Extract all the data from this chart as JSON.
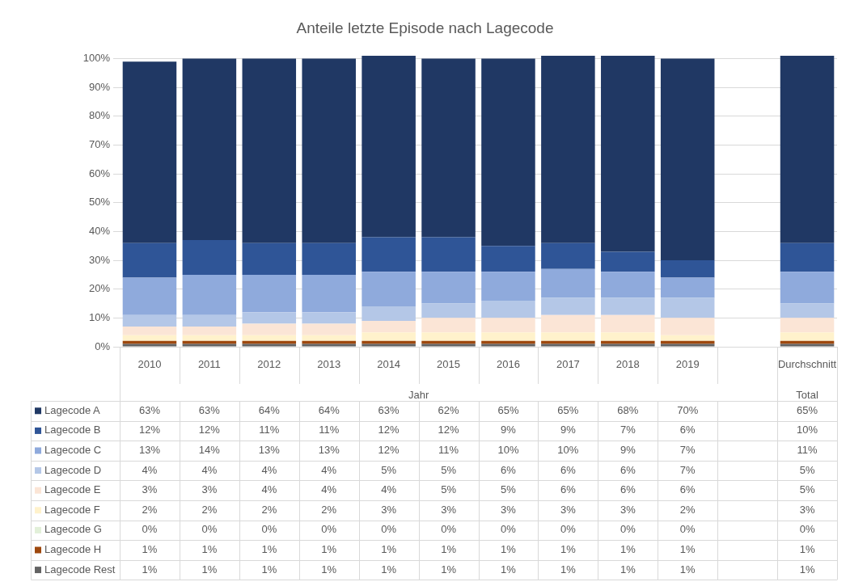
{
  "chart_data": {
    "type": "bar",
    "stacked": true,
    "title": "Anteile letzte Episode nach Lagecode",
    "categories": [
      "2010",
      "2011",
      "2012",
      "2013",
      "2014",
      "2015",
      "2016",
      "2017",
      "2018",
      "2019",
      null,
      "Durchschnitt"
    ],
    "ylim": [
      0,
      101
    ],
    "yticks": [
      {
        "value": 0,
        "label": "0%"
      },
      {
        "value": 10,
        "label": "10%"
      },
      {
        "value": 20,
        "label": "20%"
      },
      {
        "value": 30,
        "label": "30%"
      },
      {
        "value": 40,
        "label": "40%"
      },
      {
        "value": 50,
        "label": "50%"
      },
      {
        "value": 60,
        "label": "60%"
      },
      {
        "value": 70,
        "label": "70%"
      },
      {
        "value": 80,
        "label": "80%"
      },
      {
        "value": 90,
        "label": "90%"
      },
      {
        "value": 100,
        "label": "100%"
      }
    ],
    "grid": "y",
    "legend": "bottom",
    "annotations": [
      "Jahr",
      "Total"
    ],
    "series": [
      {
        "name": "Lagecode Rest",
        "color": "#636363",
        "values": [
          1,
          1,
          1,
          1,
          1,
          1,
          1,
          1,
          1,
          1,
          null,
          1
        ],
        "value_labels": [
          "1%",
          "1%",
          "1%",
          "1%",
          "1%",
          "1%",
          "1%",
          "1%",
          "1%",
          "1%",
          null,
          "1%"
        ]
      },
      {
        "name": "Lagecode H",
        "color": "#9e480e",
        "values": [
          1,
          1,
          1,
          1,
          1,
          1,
          1,
          1,
          1,
          1,
          null,
          1
        ],
        "value_labels": [
          "1%",
          "1%",
          "1%",
          "1%",
          "1%",
          "1%",
          "1%",
          "1%",
          "1%",
          "1%",
          null,
          "1%"
        ]
      },
      {
        "name": "Lagecode G",
        "color": "#e2f0d9",
        "values": [
          0,
          0,
          0,
          0,
          0,
          0,
          0,
          0,
          0,
          0,
          null,
          0
        ],
        "value_labels": [
          "0%",
          "0%",
          "0%",
          "0%",
          "0%",
          "0%",
          "0%",
          "0%",
          "0%",
          "0%",
          null,
          "0%"
        ]
      },
      {
        "name": "Lagecode F",
        "color": "#fff2cc",
        "values": [
          2,
          2,
          2,
          2,
          3,
          3,
          3,
          3,
          3,
          2,
          null,
          3
        ],
        "value_labels": [
          "2%",
          "2%",
          "2%",
          "2%",
          "3%",
          "3%",
          "3%",
          "3%",
          "3%",
          "2%",
          null,
          "3%"
        ]
      },
      {
        "name": "Lagecode E",
        "color": "#fbe5d6",
        "values": [
          3,
          3,
          4,
          4,
          4,
          5,
          5,
          6,
          6,
          6,
          null,
          5
        ],
        "value_labels": [
          "3%",
          "3%",
          "4%",
          "4%",
          "4%",
          "5%",
          "5%",
          "6%",
          "6%",
          "6%",
          null,
          "5%"
        ]
      },
      {
        "name": "Lagecode D",
        "color": "#b4c7e7",
        "values": [
          4,
          4,
          4,
          4,
          5,
          5,
          6,
          6,
          6,
          7,
          null,
          5
        ],
        "value_labels": [
          "4%",
          "4%",
          "4%",
          "4%",
          "5%",
          "5%",
          "6%",
          "6%",
          "6%",
          "7%",
          null,
          "5%"
        ]
      },
      {
        "name": "Lagecode C",
        "color": "#8faadc",
        "values": [
          13,
          14,
          13,
          13,
          12,
          11,
          10,
          10,
          9,
          7,
          null,
          11
        ],
        "value_labels": [
          "13%",
          "14%",
          "13%",
          "13%",
          "12%",
          "11%",
          "10%",
          "10%",
          "9%",
          "7%",
          null,
          "11%"
        ]
      },
      {
        "name": "Lagecode B",
        "color": "#2f5597",
        "values": [
          12,
          12,
          11,
          11,
          12,
          12,
          9,
          9,
          7,
          6,
          null,
          10
        ],
        "value_labels": [
          "12%",
          "12%",
          "11%",
          "11%",
          "12%",
          "12%",
          "9%",
          "9%",
          "7%",
          "6%",
          null,
          "10%"
        ]
      },
      {
        "name": "Lagecode A",
        "color": "#203864",
        "values": [
          63,
          63,
          64,
          64,
          63,
          62,
          65,
          65,
          68,
          70,
          null,
          65
        ],
        "value_labels": [
          "63%",
          "63%",
          "64%",
          "64%",
          "63%",
          "62%",
          "65%",
          "65%",
          "68%",
          "70%",
          null,
          "65%"
        ]
      }
    ]
  }
}
